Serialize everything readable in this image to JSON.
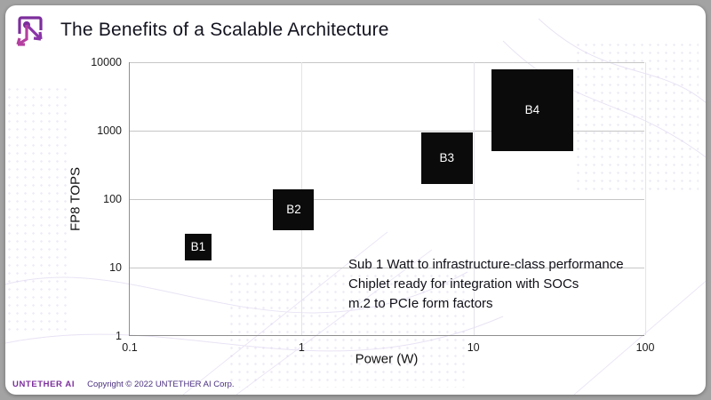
{
  "slide": {
    "title": "The Benefits of a Scalable Architecture",
    "annotation_lines": [
      "Sub 1 Watt to infrastructure-class performance",
      "Chiplet ready for integration with SOCs",
      "m.2 to PCIe form factors"
    ],
    "footer": {
      "brand": "UNTETHER AI",
      "copyright": "Copyright © 2022 UNTETHER AI Corp."
    },
    "header": {
      "logo_icon": "untether-ai-chip-logo"
    }
  },
  "colors": {
    "brand_purple": "#7C2E9C",
    "accent_magenta": "#B43FA0",
    "marker_black": "#0b0b0b",
    "grid": "#c6c6c6",
    "copyright_text": "#4a3080"
  },
  "chart_data": {
    "type": "scatter",
    "title": "",
    "xlabel": "Power (W)",
    "ylabel": "FP8 TOPS",
    "x_scale": "log",
    "y_scale": "log",
    "xlim": [
      0.1,
      100
    ],
    "ylim": [
      1,
      10000
    ],
    "x_ticks": [
      "0.1",
      "1",
      "10",
      "100"
    ],
    "y_ticks": [
      "1",
      "10",
      "100",
      "1000",
      "10000"
    ],
    "grid": "horizontal-major",
    "legend": "none",
    "points": [
      {
        "label": "B1",
        "x": 0.25,
        "y": 20,
        "marker_px": 30
      },
      {
        "label": "B2",
        "x": 0.9,
        "y": 70,
        "marker_px": 46
      },
      {
        "label": "B3",
        "x": 7,
        "y": 400,
        "marker_px": 58
      },
      {
        "label": "B4",
        "x": 22,
        "y": 2000,
        "marker_px": 92
      }
    ]
  }
}
